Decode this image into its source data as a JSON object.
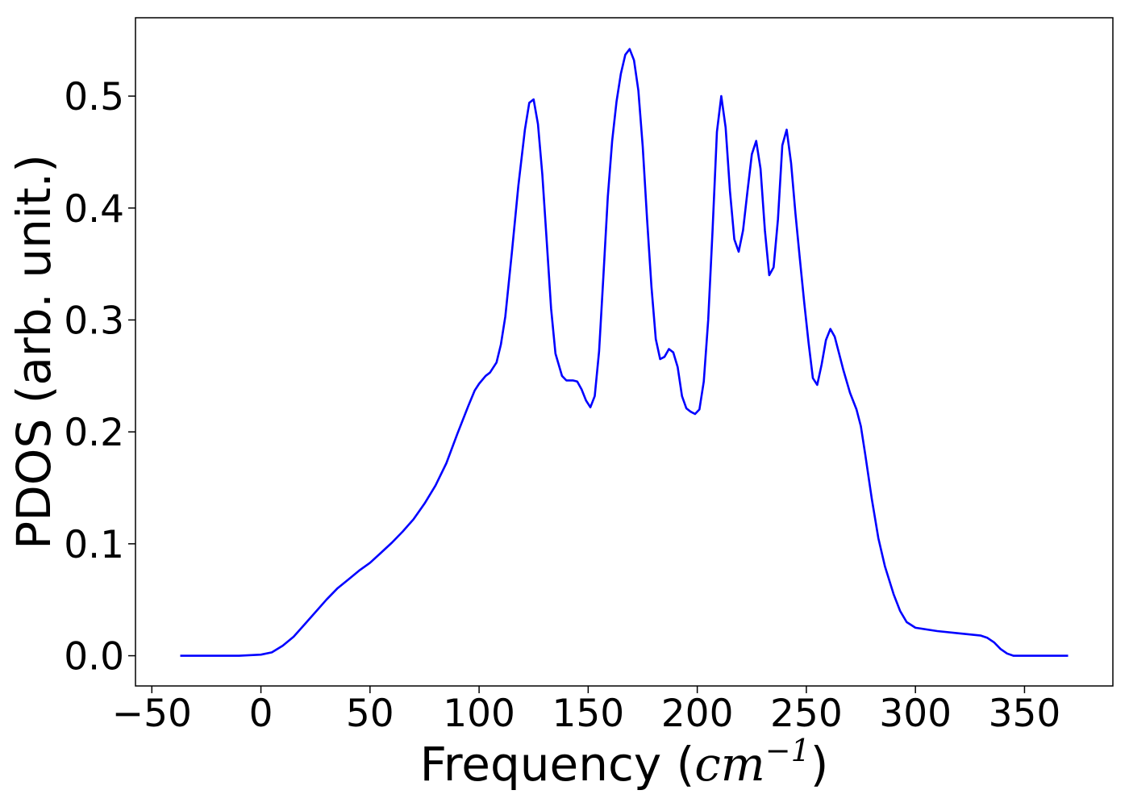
{
  "chart_data": {
    "type": "line",
    "xlabel_prefix": "Frequency (",
    "xlabel_math": "cm",
    "xlabel_sup": "−1",
    "xlabel_suffix": ")",
    "ylabel": "PDOS (arb. unit.)",
    "xlim": [
      -57.5,
      390.5
    ],
    "ylim": [
      -0.027,
      0.57
    ],
    "xticks": [
      -50,
      0,
      50,
      100,
      150,
      200,
      250,
      300,
      350
    ],
    "xtick_labels": [
      "−50",
      "0",
      "50",
      "100",
      "150",
      "200",
      "250",
      "300",
      "350"
    ],
    "yticks": [
      0.0,
      0.1,
      0.2,
      0.3,
      0.4,
      0.5
    ],
    "ytick_labels": [
      "0.0",
      "0.1",
      "0.2",
      "0.3",
      "0.4",
      "0.5"
    ],
    "grid": false,
    "series": [
      {
        "color": "#0000ff",
        "x": [
          -37,
          -10,
          0,
          5,
          10,
          15,
          20,
          25,
          30,
          35,
          40,
          45,
          50,
          55,
          60,
          65,
          70,
          75,
          80,
          85,
          90,
          95,
          98,
          100,
          103,
          105,
          108,
          110,
          112,
          115,
          118,
          121,
          123,
          125,
          127,
          129,
          131,
          133,
          135,
          138,
          140,
          143,
          145,
          147,
          149,
          151,
          153,
          155,
          157,
          159,
          161,
          163,
          165,
          167,
          169,
          171,
          173,
          175,
          177,
          179,
          181,
          183,
          185,
          187,
          189,
          191,
          193,
          195,
          197,
          199,
          201,
          203,
          205,
          207,
          209,
          211,
          213,
          215,
          217,
          219,
          221,
          223,
          225,
          227,
          229,
          231,
          233,
          235,
          237,
          239,
          241,
          243,
          245,
          247,
          249,
          251,
          253,
          255,
          257,
          259,
          261,
          263,
          265,
          267,
          270,
          273,
          275,
          277,
          280,
          283,
          286,
          290,
          293,
          296,
          300,
          310,
          320,
          330,
          333,
          336,
          339,
          342,
          345,
          350,
          360,
          370
        ],
        "y": [
          0.0,
          0.0,
          0.001,
          0.003,
          0.009,
          0.017,
          0.028,
          0.039,
          0.05,
          0.06,
          0.068,
          0.076,
          0.083,
          0.092,
          0.101,
          0.111,
          0.122,
          0.136,
          0.152,
          0.172,
          0.198,
          0.223,
          0.237,
          0.243,
          0.25,
          0.253,
          0.262,
          0.278,
          0.303,
          0.36,
          0.42,
          0.47,
          0.494,
          0.497,
          0.475,
          0.43,
          0.37,
          0.31,
          0.27,
          0.25,
          0.246,
          0.246,
          0.245,
          0.238,
          0.228,
          0.222,
          0.232,
          0.272,
          0.34,
          0.41,
          0.46,
          0.495,
          0.52,
          0.537,
          0.542,
          0.532,
          0.505,
          0.455,
          0.39,
          0.33,
          0.283,
          0.265,
          0.267,
          0.274,
          0.271,
          0.258,
          0.232,
          0.221,
          0.218,
          0.216,
          0.22,
          0.245,
          0.3,
          0.38,
          0.468,
          0.5,
          0.472,
          0.415,
          0.372,
          0.361,
          0.38,
          0.415,
          0.448,
          0.46,
          0.435,
          0.38,
          0.34,
          0.347,
          0.39,
          0.456,
          0.47,
          0.44,
          0.395,
          0.355,
          0.316,
          0.28,
          0.248,
          0.242,
          0.26,
          0.282,
          0.292,
          0.285,
          0.27,
          0.255,
          0.235,
          0.22,
          0.205,
          0.18,
          0.14,
          0.105,
          0.08,
          0.055,
          0.04,
          0.03,
          0.025,
          0.022,
          0.02,
          0.018,
          0.016,
          0.012,
          0.006,
          0.002,
          0.0,
          0.0,
          0.0,
          0.0
        ]
      }
    ]
  }
}
